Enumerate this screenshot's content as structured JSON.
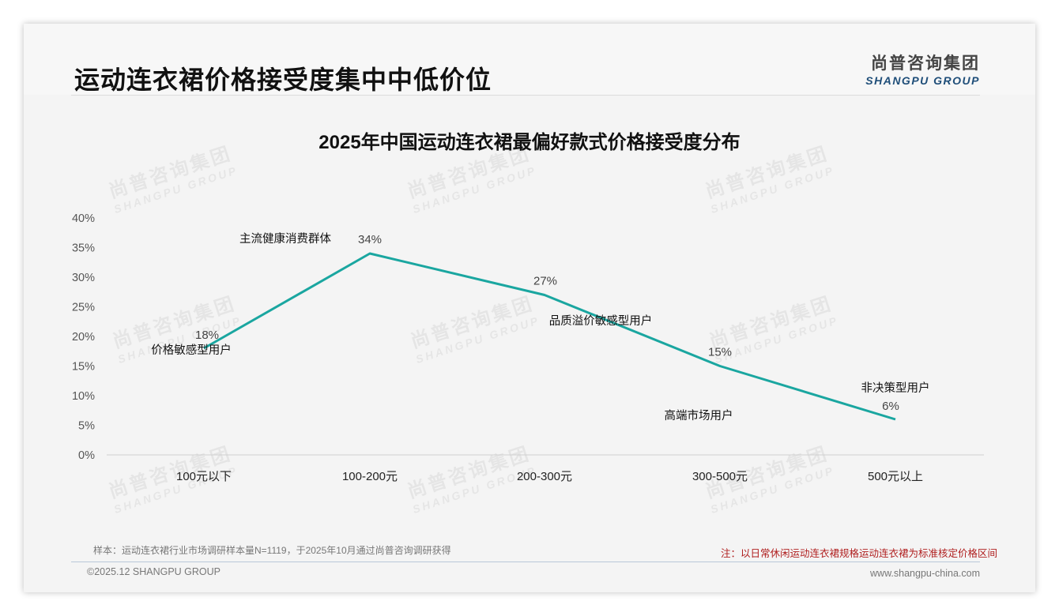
{
  "header": {
    "title": "运动连衣裙价格接受度集中中低价位",
    "logo_cn": "尚普咨询集团",
    "logo_en": "SHANGPU GROUP"
  },
  "watermark": {
    "cn": "尚普咨询集团",
    "en": "SHANGPU GROUP"
  },
  "chart_data": {
    "type": "line",
    "title": "2025年中国运动连衣裙最偏好款式价格接受度分布",
    "categories": [
      "100元以下",
      "100-200元",
      "200-300元",
      "300-500元",
      "500元以上"
    ],
    "values": [
      18,
      34,
      27,
      15,
      6
    ],
    "value_labels": [
      "18%",
      "34%",
      "27%",
      "15%",
      "6%"
    ],
    "annotations": [
      "价格敏感型用户",
      "主流健康消费群体",
      "品质溢价敏感型用户",
      "高端市场用户",
      "非决策型用户"
    ],
    "yticks": [
      "0%",
      "5%",
      "10%",
      "15%",
      "20%",
      "25%",
      "30%",
      "35%",
      "40%"
    ],
    "ylim": [
      0,
      40
    ],
    "xlabel": "",
    "ylabel": "",
    "grid": false,
    "line_color": "#1aa6a0"
  },
  "footer": {
    "sample_note": "样本：运动连衣裙行业市场调研样本量N=1119，于2025年10月通过尚普咨询调研获得",
    "note": "注：以日常休闲运动连衣裙规格运动连衣裙为标准核定价格区间",
    "copyright": "©2025.12 SHANGPU GROUP",
    "website": "www.shangpu-china.com"
  }
}
